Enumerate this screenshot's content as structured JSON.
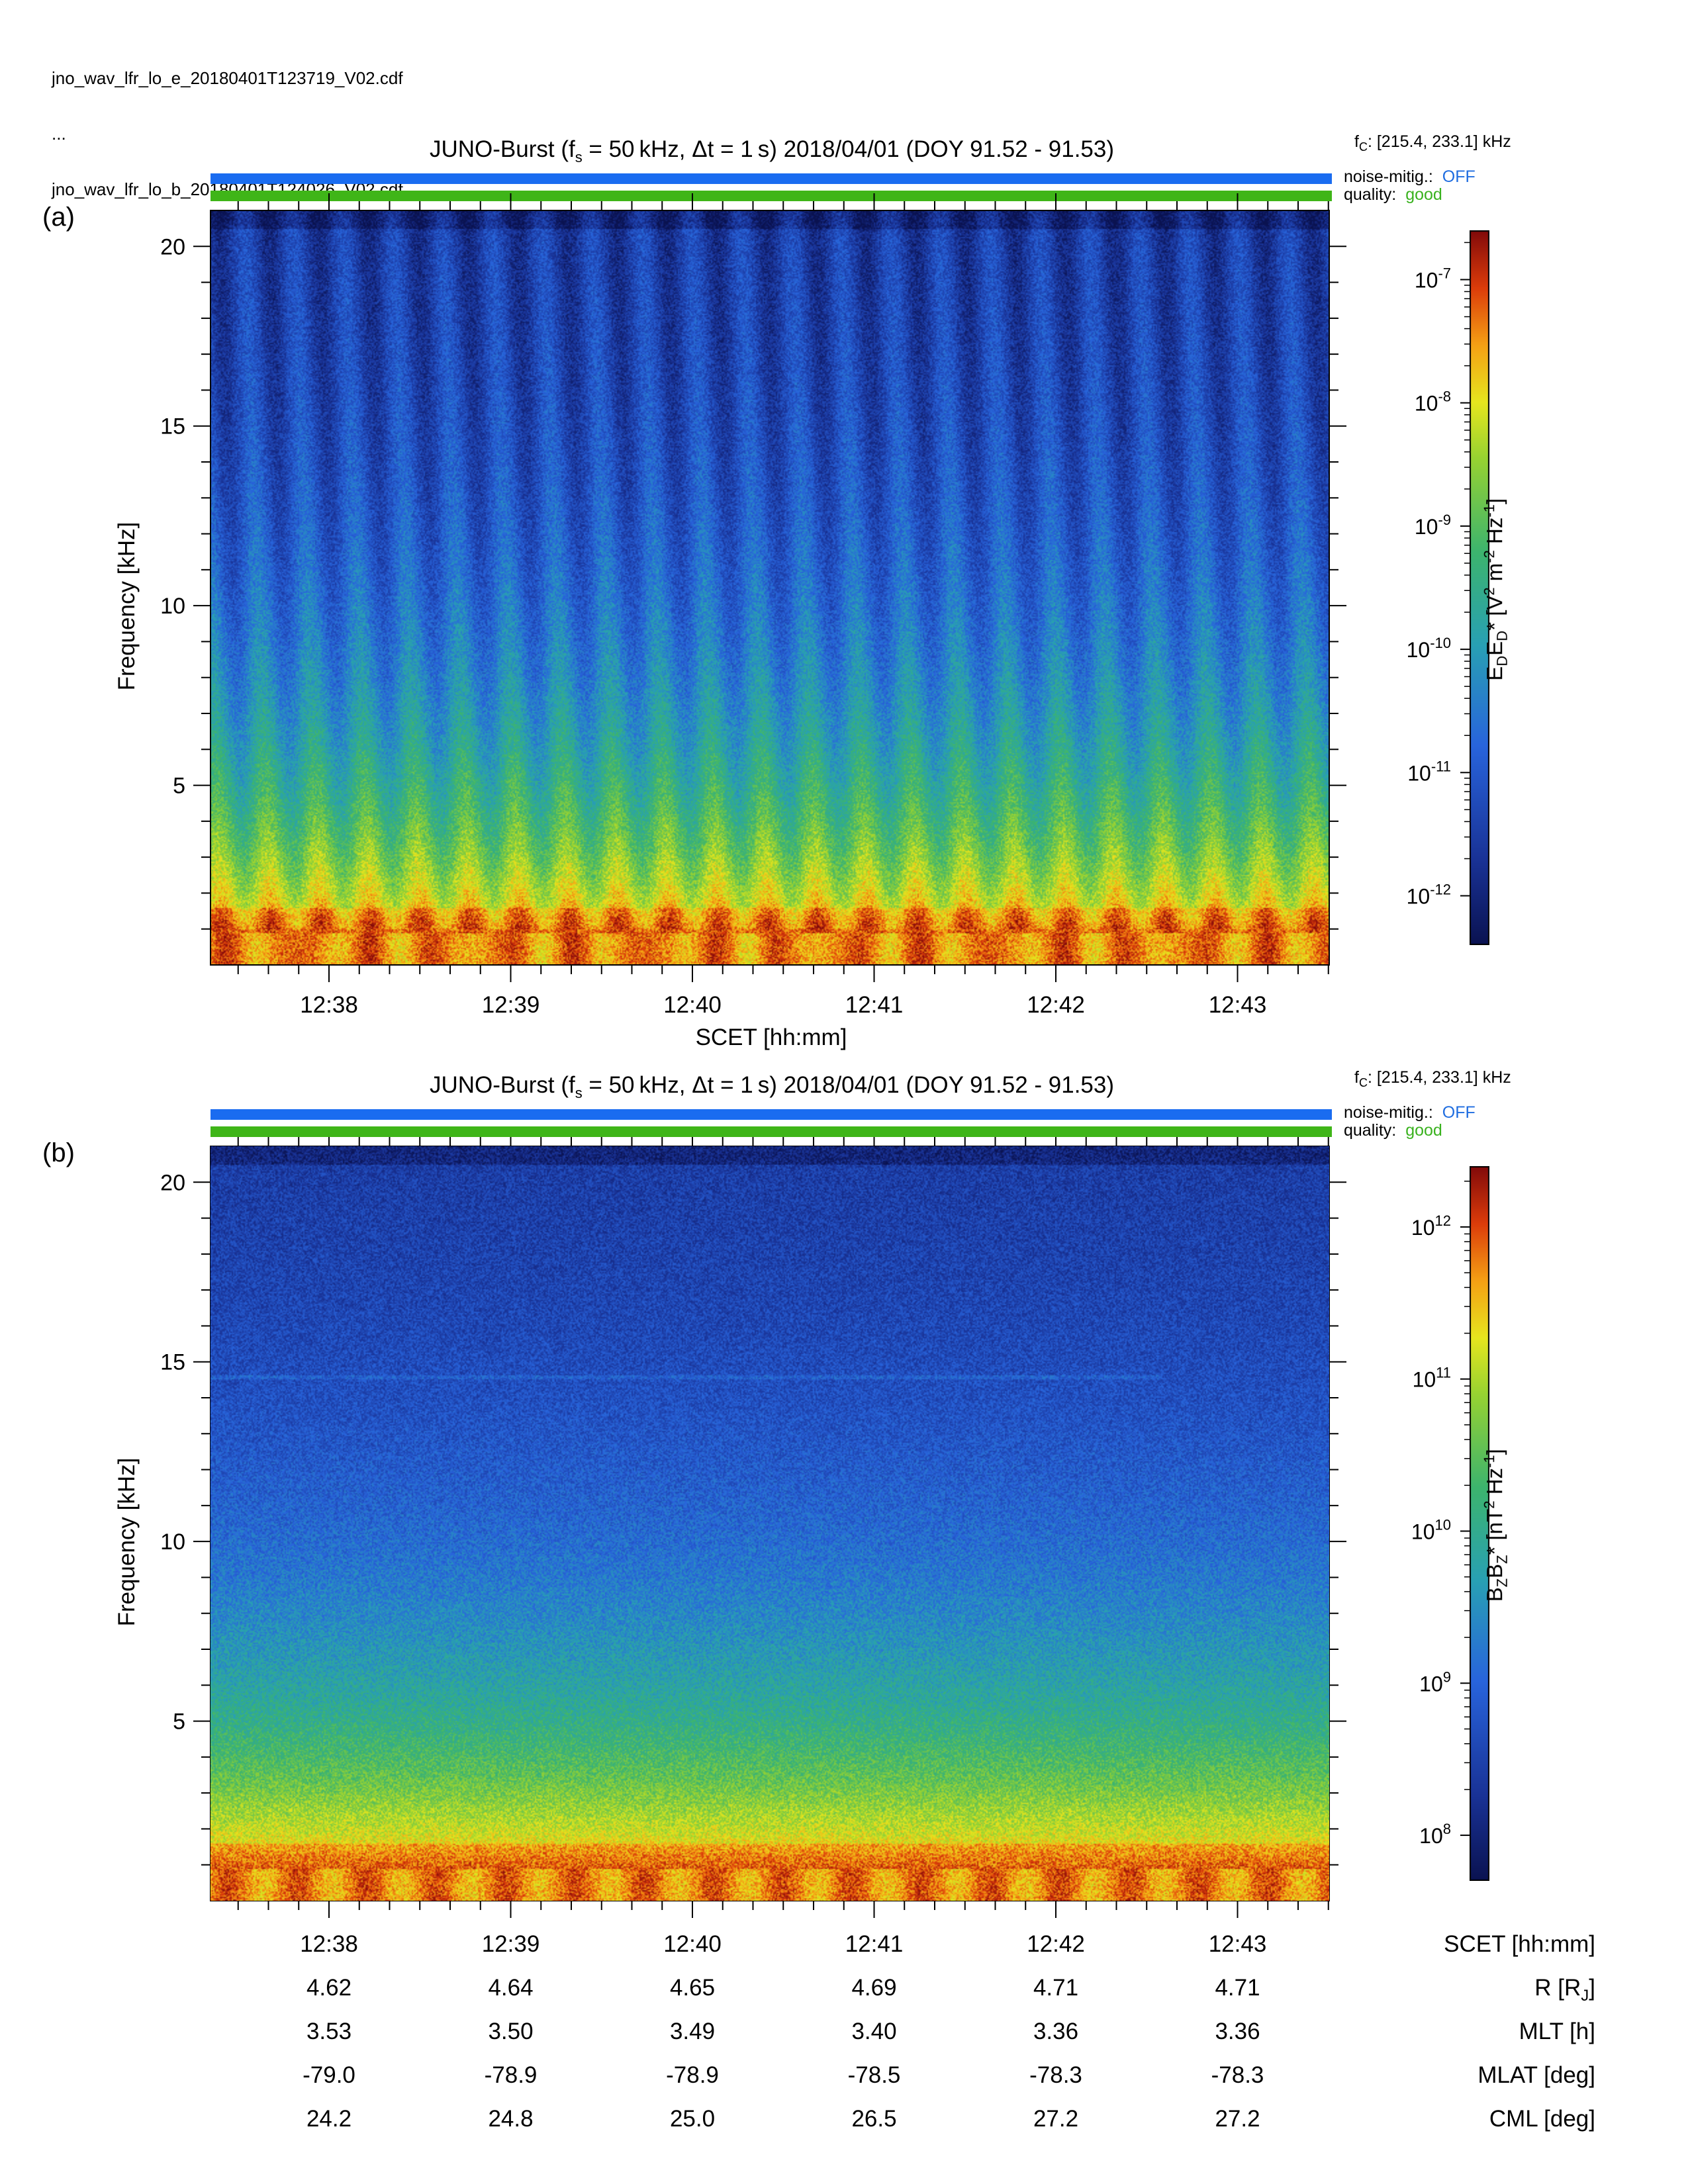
{
  "header": {
    "file_e": "jno_wav_lfr_lo_e_20180401T123719_V02.cdf",
    "ellipsis": "...",
    "file_b": "jno_wav_lfr_lo_b_20180401T124026_V02.cdf"
  },
  "panels": [
    {
      "label": "(a)",
      "title_pre": "JUNO-Burst (f",
      "title_sub": "s",
      "title_post": " = 50 kHz, Δt = 1 s)  2018/04/01 (DOY 91.52 - 91.53)",
      "fc_main": "f",
      "fc_sub": "C",
      "fc_rest": ": [215.4, 233.1] kHz",
      "noise_label": "noise-mitig.:",
      "noise_value": "OFF",
      "quality_label": "quality:",
      "quality_value": "good",
      "ylabel": "Frequency [kHz]",
      "xlabel": "SCET [hh:mm]",
      "colorbar_label": "E₀E₀* [V² m⁻² Hz⁻¹]"
    },
    {
      "label": "(b)",
      "title_pre": "JUNO-Burst (f",
      "title_sub": "s",
      "title_post": " = 50 kHz, Δt = 1 s)  2018/04/01 (DOY 91.52 - 91.53)",
      "fc_main": "f",
      "fc_sub": "C",
      "fc_rest": ": [215.4, 233.1] kHz",
      "noise_label": "noise-mitig.:",
      "noise_value": "OFF",
      "quality_label": "quality:",
      "quality_value": "good",
      "ylabel": "Frequency [kHz]",
      "colorbar_label": "BzBz* [nT² Hz⁻¹]"
    }
  ],
  "colors": {
    "noise_bar": "#1a6cf0",
    "quality_bar": "#3fb518",
    "noise_text": "#1f6de0",
    "quality_text": "#3ab21f"
  },
  "chart_data": [
    {
      "type": "heatmap",
      "title": "JUNO-Burst (fs = 50 kHz, Δt = 1 s)  2018/04/01 (DOY 91.52 - 91.53)",
      "xlabel": "SCET [hh:mm]",
      "ylabel": "Frequency [kHz]",
      "x_ticks": [
        "12:38",
        "12:39",
        "12:40",
        "12:41",
        "12:42",
        "12:43"
      ],
      "y_ticks": [
        5,
        10,
        15,
        20
      ],
      "ylim": [
        0,
        21
      ],
      "colorbar": {
        "label": "EDED* [V2 m-2 Hz-1]",
        "scale": "log",
        "ticks": [
          "10-7",
          "10-8",
          "10-9",
          "10-10",
          "10-11",
          "10-12"
        ],
        "tick_exponents": [
          -7,
          -8,
          -9,
          -10,
          -11,
          -12
        ],
        "range_log10": [
          -12.4,
          -6.6
        ]
      },
      "features": "periodic vertical stripes (~22 over 6 minutes), intense emission below ~1 kHz"
    },
    {
      "type": "heatmap",
      "title": "JUNO-Burst (fs = 50 kHz, Δt = 1 s)  2018/04/01 (DOY 91.52 - 91.53)",
      "ylabel": "Frequency [kHz]",
      "x_ticks": [
        "12:38",
        "12:39",
        "12:40",
        "12:41",
        "12:42",
        "12:43"
      ],
      "y_ticks": [
        5,
        10,
        15,
        20
      ],
      "ylim": [
        0,
        21
      ],
      "colorbar": {
        "label": "BzBz* [nT2 Hz-1]",
        "scale": "log",
        "ticks": [
          "10^12",
          "10^11",
          "10^10",
          "10^9",
          "10^8"
        ],
        "tick_exponents": [
          12,
          11,
          10,
          9,
          8
        ],
        "range_log10": [
          7.7,
          12.4
        ]
      },
      "features": "featureless noise background, intense emission below ~1 kHz, faint line near 14.6 kHz"
    }
  ],
  "ephemeris": {
    "labels": [
      "SCET [hh:mm]",
      "R [R",
      "MLT [h]",
      "MLAT [deg]",
      "CML [deg]"
    ],
    "r_sub": "J",
    "r_close": "]",
    "times": [
      "12:38",
      "12:39",
      "12:40",
      "12:41",
      "12:42",
      "12:43"
    ],
    "R": [
      "4.62",
      "4.64",
      "4.65",
      "4.69",
      "4.71",
      "4.71"
    ],
    "MLT": [
      "3.53",
      "3.50",
      "3.49",
      "3.40",
      "3.36",
      "3.36"
    ],
    "MLAT": [
      "-79.0",
      "-78.9",
      "-78.9",
      "-78.5",
      "-78.3",
      "-78.3"
    ],
    "CML": [
      "24.2",
      "24.8",
      "25.0",
      "26.5",
      "27.2",
      "27.2"
    ]
  }
}
